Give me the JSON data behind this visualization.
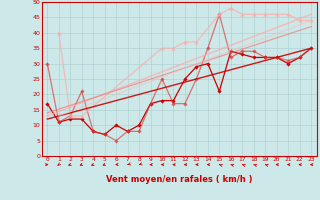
{
  "xlabel": "Vent moyen/en rafales ( km/h )",
  "xlim": [
    -0.5,
    23.5
  ],
  "ylim": [
    0,
    50
  ],
  "xticks": [
    0,
    1,
    2,
    3,
    4,
    5,
    6,
    7,
    8,
    9,
    10,
    11,
    12,
    13,
    14,
    15,
    16,
    17,
    18,
    19,
    20,
    21,
    22,
    23
  ],
  "yticks": [
    0,
    5,
    10,
    15,
    20,
    25,
    30,
    35,
    40,
    45,
    50
  ],
  "bg_color": "#cce8e8",
  "grid_color": "#aacccc",
  "axis_color": "#cc0000",
  "lines": [
    {
      "x": [
        0,
        1,
        2,
        3,
        4,
        5,
        6,
        7,
        8,
        9,
        10,
        11,
        12,
        13,
        14,
        15,
        16,
        17,
        18,
        19,
        20,
        21,
        22,
        23
      ],
      "y": [
        17,
        11,
        12,
        12,
        8,
        7,
        10,
        8,
        10,
        17,
        18,
        18,
        25,
        29,
        30,
        21,
        34,
        33,
        32,
        32,
        32,
        30,
        32,
        35
      ],
      "color": "#cc0000",
      "alpha": 1.0,
      "lw": 0.9,
      "marker": "D",
      "ms": 1.8
    },
    {
      "x": [
        0,
        1,
        2,
        3,
        4,
        5,
        6,
        7,
        8,
        9,
        10,
        11,
        12,
        13,
        14,
        15,
        16,
        17,
        18,
        19,
        20,
        21,
        22,
        23
      ],
      "y": [
        30,
        11,
        13,
        21,
        8,
        7,
        5,
        8,
        8,
        17,
        25,
        17,
        17,
        25,
        35,
        46,
        32,
        34,
        34,
        32,
        32,
        31,
        32,
        35
      ],
      "color": "#dd3333",
      "alpha": 0.65,
      "lw": 0.9,
      "marker": "D",
      "ms": 1.8
    },
    {
      "x": [
        1,
        2,
        3,
        10,
        11,
        12,
        13,
        15,
        16,
        17,
        18,
        19,
        20,
        21,
        22,
        23
      ],
      "y": [
        40,
        13,
        13,
        35,
        35,
        37,
        37,
        46,
        48,
        46,
        46,
        46,
        46,
        46,
        44,
        44
      ],
      "color": "#ffaaaa",
      "alpha": 0.75,
      "lw": 0.9,
      "marker": "^",
      "ms": 2.5
    },
    {
      "x": [
        0,
        23
      ],
      "y": [
        12,
        35
      ],
      "color": "#cc0000",
      "alpha": 0.9,
      "lw": 1.0,
      "marker": null,
      "ms": 0
    },
    {
      "x": [
        0,
        23
      ],
      "y": [
        13,
        46
      ],
      "color": "#ffaaaa",
      "alpha": 0.75,
      "lw": 1.0,
      "marker": null,
      "ms": 0
    },
    {
      "x": [
        0,
        23
      ],
      "y": [
        14,
        42
      ],
      "color": "#ee7777",
      "alpha": 0.65,
      "lw": 0.9,
      "marker": null,
      "ms": 0
    },
    {
      "x": [
        1,
        23
      ],
      "y": [
        13,
        44
      ],
      "color": "#ffbbbb",
      "alpha": 0.6,
      "lw": 0.8,
      "marker": null,
      "ms": 0
    }
  ],
  "wind_arrows": {
    "x": [
      0,
      1,
      2,
      3,
      4,
      5,
      6,
      7,
      8,
      9,
      10,
      11,
      12,
      13,
      14,
      15,
      16,
      17,
      18,
      19,
      20,
      21,
      22,
      23
    ],
    "angles": [
      90,
      200,
      215,
      215,
      215,
      215,
      250,
      225,
      225,
      270,
      270,
      270,
      270,
      270,
      270,
      315,
      315,
      315,
      315,
      315,
      270,
      270,
      270,
      270
    ]
  }
}
